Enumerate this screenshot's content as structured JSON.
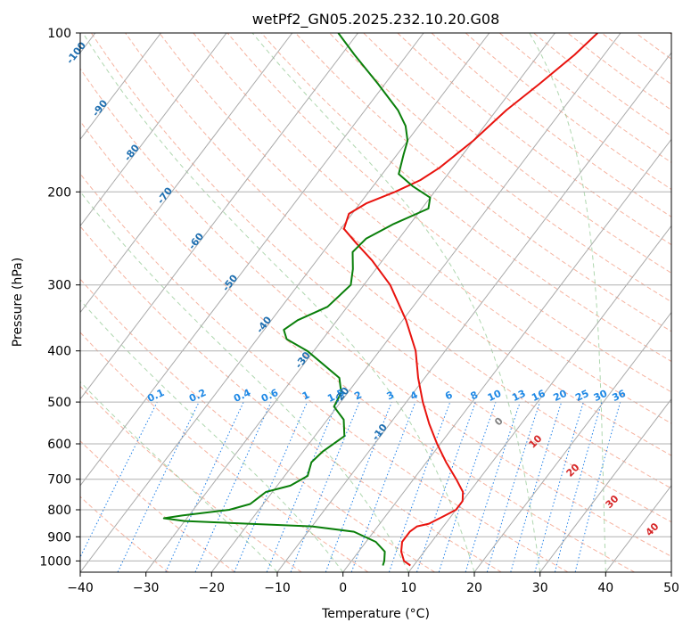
{
  "chart_data": {
    "type": "line",
    "subtype": "skew-t log-p diagram",
    "title": "wetPf2_GN05.2025.232.10.20.G08",
    "xlabel": "Temperature (°C)",
    "ylabel": "Pressure (hPa)",
    "xlim": [
      -40,
      50
    ],
    "ylim": [
      1050,
      100
    ],
    "y_scale": "log",
    "grid": true,
    "x_ticks": [
      -40,
      -30,
      -20,
      -10,
      0,
      10,
      20,
      30,
      40,
      50
    ],
    "x_tick_labels": [
      "−40",
      "−30",
      "−20",
      "−10",
      "0",
      "10",
      "20",
      "30",
      "40",
      "50"
    ],
    "y_ticks": [
      100,
      200,
      300,
      400,
      500,
      600,
      700,
      800,
      900,
      1000
    ],
    "y_tick_labels": [
      "100",
      "200",
      "300",
      "400",
      "500",
      "600",
      "700",
      "800",
      "900",
      "1000"
    ],
    "series": [
      {
        "role": "temperature",
        "color": "#e8130e",
        "points": [
          {
            "p": 1020,
            "t": 9.5
          },
          {
            "p": 1000,
            "t": 8.0
          },
          {
            "p": 960,
            "t": 6.5
          },
          {
            "p": 920,
            "t": 5.5
          },
          {
            "p": 880,
            "t": 5.5
          },
          {
            "p": 860,
            "t": 6.0
          },
          {
            "p": 850,
            "t": 7.5
          },
          {
            "p": 820,
            "t": 9.0
          },
          {
            "p": 800,
            "t": 10.0
          },
          {
            "p": 770,
            "t": 10.0
          },
          {
            "p": 740,
            "t": 9.0
          },
          {
            "p": 700,
            "t": 6.5
          },
          {
            "p": 650,
            "t": 3.0
          },
          {
            "p": 600,
            "t": -0.5
          },
          {
            "p": 550,
            "t": -4.0
          },
          {
            "p": 500,
            "t": -7.5
          },
          {
            "p": 450,
            "t": -11.0
          },
          {
            "p": 400,
            "t": -14.5
          },
          {
            "p": 350,
            "t": -19.5
          },
          {
            "p": 300,
            "t": -26.0
          },
          {
            "p": 270,
            "t": -31.5
          },
          {
            "p": 250,
            "t": -36.0
          },
          {
            "p": 235,
            "t": -39.5
          },
          {
            "p": 220,
            "t": -40.5
          },
          {
            "p": 210,
            "t": -39.0
          },
          {
            "p": 200,
            "t": -36.0
          },
          {
            "p": 190,
            "t": -33.5
          },
          {
            "p": 180,
            "t": -32.0
          },
          {
            "p": 160,
            "t": -30.0
          },
          {
            "p": 140,
            "t": -28.5
          },
          {
            "p": 125,
            "t": -26.5
          },
          {
            "p": 110,
            "t": -24.5
          },
          {
            "p": 100,
            "t": -23.5
          }
        ]
      },
      {
        "role": "dewpoint",
        "color": "#0a7f0a",
        "points": [
          {
            "p": 1020,
            "t": 5.3
          },
          {
            "p": 1000,
            "t": 5.0
          },
          {
            "p": 960,
            "t": 4.0
          },
          {
            "p": 920,
            "t": 1.5
          },
          {
            "p": 880,
            "t": -3.0
          },
          {
            "p": 860,
            "t": -10.0
          },
          {
            "p": 840,
            "t": -30.0
          },
          {
            "p": 830,
            "t": -33.5
          },
          {
            "p": 820,
            "t": -31.0
          },
          {
            "p": 800,
            "t": -24.5
          },
          {
            "p": 780,
            "t": -22.0
          },
          {
            "p": 760,
            "t": -21.5
          },
          {
            "p": 740,
            "t": -21.0
          },
          {
            "p": 720,
            "t": -18.0
          },
          {
            "p": 690,
            "t": -16.5
          },
          {
            "p": 650,
            "t": -17.5
          },
          {
            "p": 620,
            "t": -17.0
          },
          {
            "p": 580,
            "t": -15.5
          },
          {
            "p": 540,
            "t": -17.5
          },
          {
            "p": 510,
            "t": -20.5
          },
          {
            "p": 480,
            "t": -21.0
          },
          {
            "p": 450,
            "t": -23.0
          },
          {
            "p": 400,
            "t": -31.0
          },
          {
            "p": 380,
            "t": -35.5
          },
          {
            "p": 365,
            "t": -37.0
          },
          {
            "p": 350,
            "t": -36.0
          },
          {
            "p": 330,
            "t": -33.0
          },
          {
            "p": 300,
            "t": -32.0
          },
          {
            "p": 280,
            "t": -33.5
          },
          {
            "p": 260,
            "t": -35.5
          },
          {
            "p": 245,
            "t": -35.0
          },
          {
            "p": 230,
            "t": -32.5
          },
          {
            "p": 215,
            "t": -29.0
          },
          {
            "p": 205,
            "t": -30.0
          },
          {
            "p": 195,
            "t": -34.0
          },
          {
            "p": 185,
            "t": -37.5
          },
          {
            "p": 170,
            "t": -39.0
          },
          {
            "p": 160,
            "t": -40.0
          },
          {
            "p": 150,
            "t": -42.0
          },
          {
            "p": 140,
            "t": -45.0
          },
          {
            "p": 125,
            "t": -51.0
          },
          {
            "p": 110,
            "t": -58.0
          },
          {
            "p": 100,
            "t": -63.0
          }
        ]
      }
    ],
    "background_lines": {
      "isotherm_color": "#aaaaaa",
      "dry_adiabat_color": "#f08060",
      "moist_adiabat_color": "#60b060",
      "mixing_ratio_color": "#1e7fe8",
      "gridline_color": "#b0b0b0",
      "ccl_curve_color": "#c8b090",
      "isotherm_labels": [
        {
          "text": "-100",
          "value": -100
        },
        {
          "text": "-90",
          "value": -90
        },
        {
          "text": "-80",
          "value": -80
        },
        {
          "text": "-70",
          "value": -70
        },
        {
          "text": "-60",
          "value": -60
        },
        {
          "text": "-50",
          "value": -50
        },
        {
          "text": "-40",
          "value": -40
        },
        {
          "text": "-30",
          "value": -30
        },
        {
          "text": "-20",
          "value": -20
        },
        {
          "text": "-10",
          "value": -10
        }
      ],
      "isotherm_label_color": "#1f6fb0",
      "low_isotherm_labels": [
        {
          "text": "0",
          "value": 0,
          "color": "#808080"
        },
        {
          "text": "10",
          "value": 10,
          "color": "#d62728"
        },
        {
          "text": "20",
          "value": 20,
          "color": "#d62728"
        },
        {
          "text": "30",
          "value": 30,
          "color": "#d62728"
        },
        {
          "text": "40",
          "value": 40,
          "color": "#d62728"
        }
      ],
      "mixing_ratio_labels": [
        "0.1",
        "0.2",
        "0.4",
        "0.6",
        "1",
        "1.5",
        "2",
        "3",
        "4",
        "6",
        "8",
        "10",
        "13",
        "16",
        "20",
        "25",
        "30",
        "36"
      ],
      "mixing_ratio_label_color": "#1e88e5"
    }
  }
}
